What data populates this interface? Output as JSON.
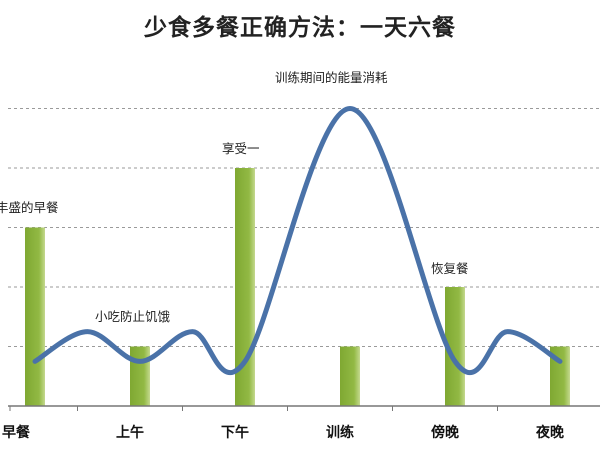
{
  "title": "少食多餐正确方法：一天六餐",
  "chart_data": {
    "type": "bar",
    "categories": [
      "早餐",
      "上午",
      "下午",
      "训练",
      "傍晚",
      "夜晚"
    ],
    "series": [
      {
        "type": "bar",
        "values": [
          3,
          1,
          4,
          1,
          2,
          1
        ]
      },
      {
        "type": "line",
        "values": [
          0.75,
          1.25,
          0.75,
          1.25,
          0.75,
          5.0,
          0.75,
          1.25,
          0.75
        ],
        "x": [
          0,
          0.5,
          1,
          1.5,
          2,
          3,
          4,
          4.5,
          5
        ]
      }
    ],
    "ylim": [
      0,
      5.2
    ],
    "grid": true,
    "colors": {
      "bar": "#8db33d",
      "bar_light": "#b4cf73",
      "line": "#4a72a8",
      "grid": "#9a9a9a"
    },
    "annotations": [
      {
        "text": "丰盛的早餐"
      },
      {
        "text": "小吃防止饥饿"
      },
      {
        "text": "享受一"
      },
      {
        "text": "训练期间的能量消耗"
      },
      {
        "text": "恢复餐"
      }
    ]
  }
}
